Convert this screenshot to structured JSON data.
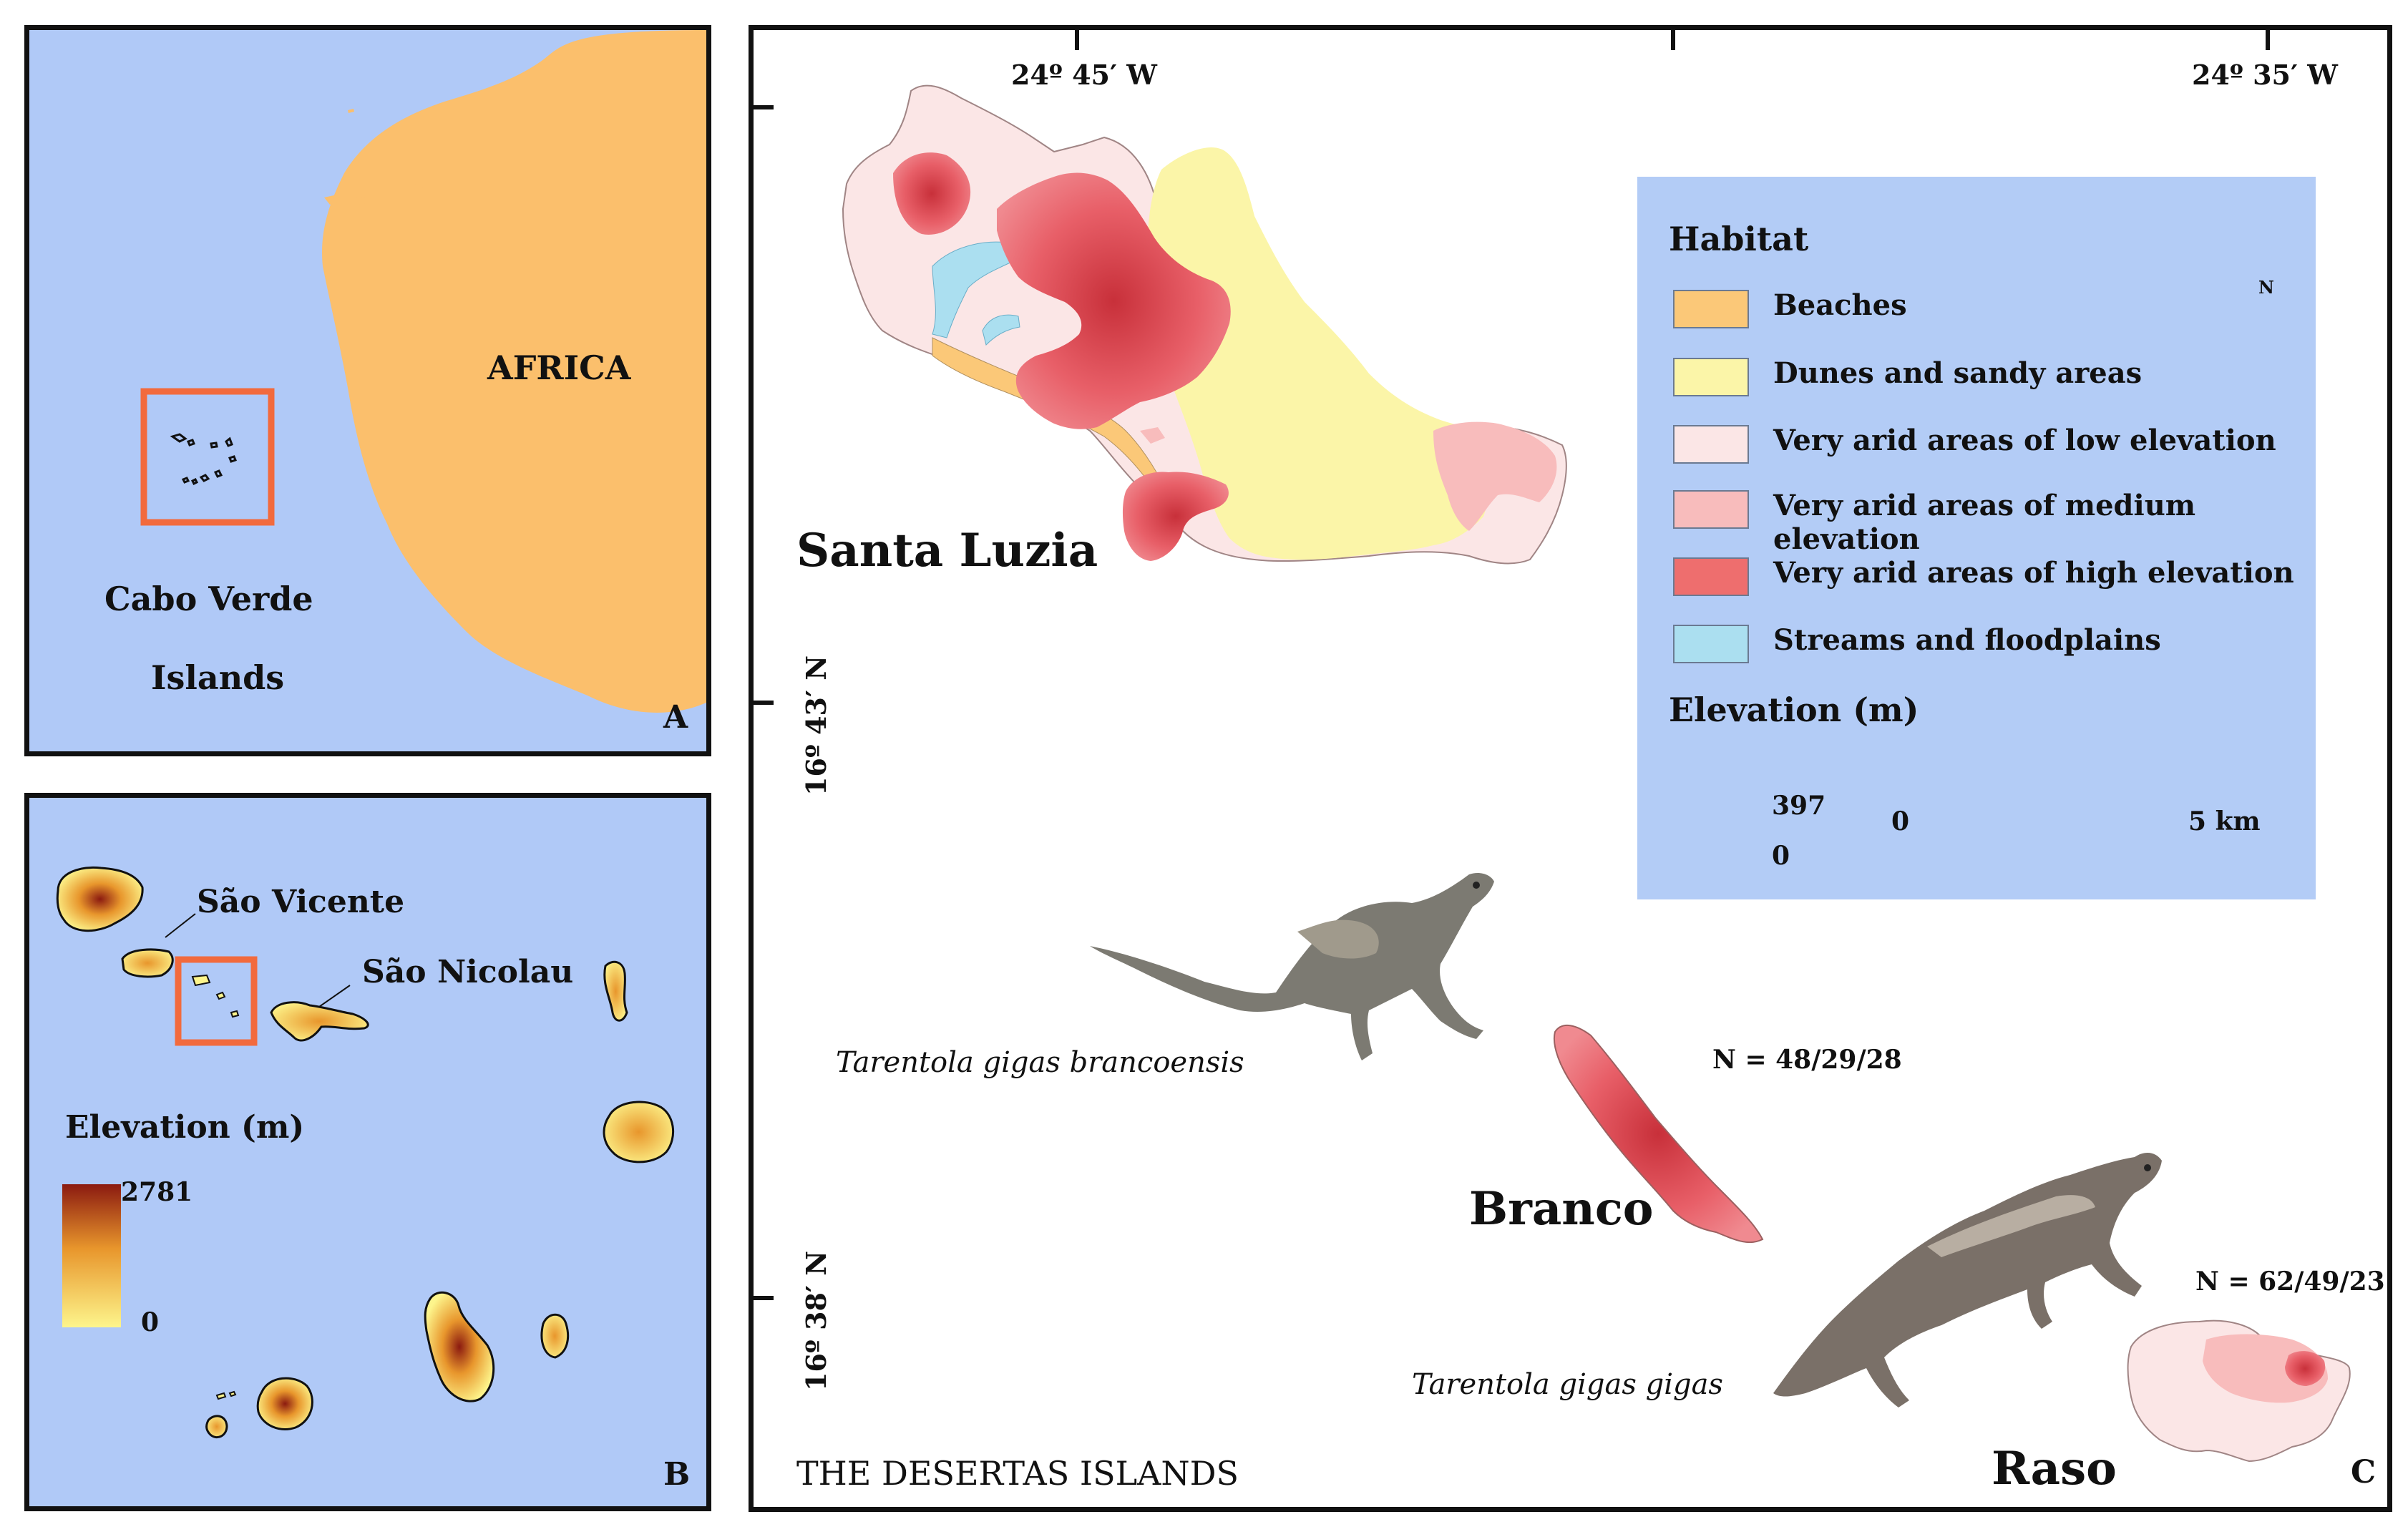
{
  "panel_a": {
    "continent_label": "AFRICA",
    "islands_label_line1": "Cabo Verde",
    "islands_label_line2": "Islands",
    "panel_letter": "A",
    "colors": {
      "ocean": "#b0c9f7",
      "land": "#fbbf6c",
      "highlight": "#f26a3d"
    }
  },
  "panel_b": {
    "label_sao_vicente": "São Vicente",
    "label_sao_nicolau": "São Nicolau",
    "elevation_title": "Elevation (m)",
    "elev_max": "2781",
    "elev_min": "0",
    "panel_letter": "B",
    "colors": {
      "ramp_high": "#8b1a10",
      "ramp_mid": "#e8962c",
      "ramp_low": "#fdf58c"
    }
  },
  "panel_c": {
    "coord_left": "24º 45′ W",
    "coord_right": "24º 35′ W",
    "lat_upper": "16º 43′ N",
    "lat_lower": "16º 38′ N",
    "island_santa_luzia": "Santa Luzia",
    "island_branco": "Branco",
    "island_raso": "Raso",
    "species_brancoensis": "Tarentola gigas brancoensis",
    "species_gigas": "Tarentola gigas gigas",
    "sample_branco": "N = 48/29/28",
    "sample_raso": "N = 62/49/23",
    "footer": "THE DESERTAS ISLANDS",
    "panel_letter": "C"
  },
  "legend": {
    "habitat_title": "Habitat",
    "north_letter": "N",
    "items": [
      {
        "label": "Beaches",
        "color": "#fbc878"
      },
      {
        "label": "Dunes and sandy areas",
        "color": "#fbf5a8"
      },
      {
        "label": "Very arid areas of low elevation",
        "color": "#fbe6e6"
      },
      {
        "label": "Very arid areas of medium elevation",
        "color": "#f8bcbc"
      },
      {
        "label": "Very arid areas of high elevation",
        "color": "#ee6e6e"
      },
      {
        "label": "Streams and floodplains",
        "color": "#abdff0"
      }
    ],
    "elevation_title": "Elevation (m)",
    "elev_max": "397",
    "elev_min": "0",
    "scale_start": "0",
    "scale_end": "5 km"
  }
}
